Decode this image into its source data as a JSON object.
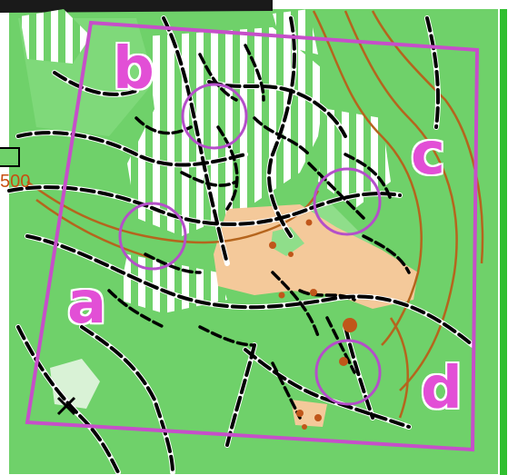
{
  "map": {
    "zone_labels": [
      "a",
      "b",
      "c",
      "d"
    ],
    "scale_text": "500",
    "colors": {
      "forest": "#6fd16a",
      "open_land": "#f4c99a",
      "boundary": "#c64fc9",
      "control_circle": "#b44fc9",
      "path": "#000000",
      "contour": "#b5651d",
      "label": "#e24fd6",
      "boulder": "#c0561a",
      "right_strip": "#2fbf2f"
    }
  }
}
